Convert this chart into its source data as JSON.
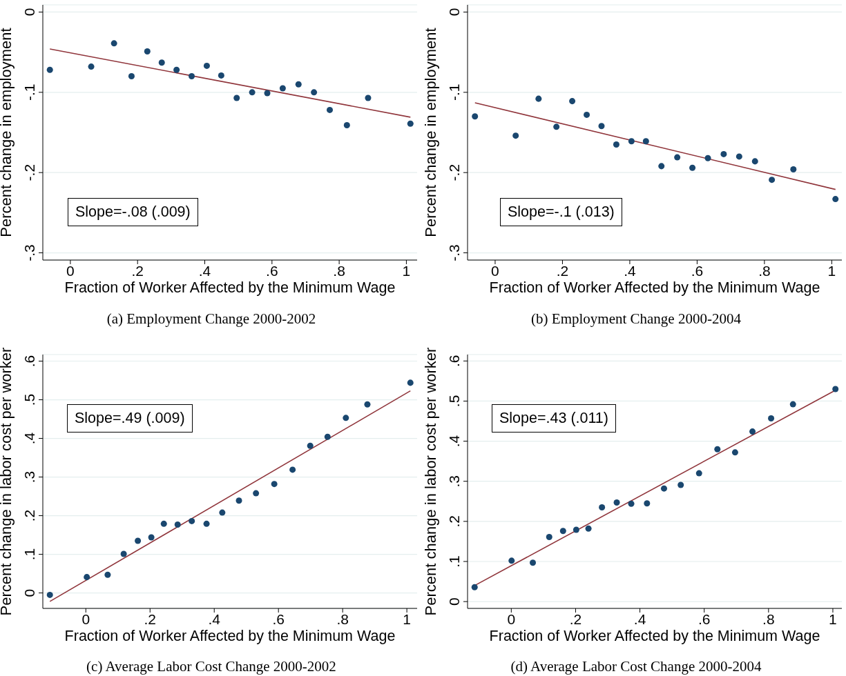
{
  "chart_data": [
    {
      "type": "scatter",
      "title": "(a)  Employment Change 2000-2002",
      "xlabel": "Fraction of Worker Affected by the Minimum Wage",
      "ylabel": "Percent change in employment",
      "annotations": [
        "Slope=-.08 (.009)"
      ],
      "grid": "y",
      "xlim": [
        -0.082,
        1.032
      ],
      "xticks": [
        {
          "value": 0,
          "label": "0"
        },
        {
          "value": 0.2,
          "label": ".2"
        },
        {
          "value": 0.4,
          "label": ".4"
        },
        {
          "value": 0.6,
          "label": ".6"
        },
        {
          "value": 0.8,
          "label": ".8"
        },
        {
          "value": 1,
          "label": "1"
        }
      ],
      "ylim": [
        -0.309,
        0.009
      ],
      "yticks": [
        {
          "value": 0,
          "label": "0"
        },
        {
          "value": -0.1,
          "label": "-.1"
        },
        {
          "value": -0.2,
          "label": "-.2"
        },
        {
          "value": -0.3,
          "label": "-.3"
        }
      ],
      "series": [
        {
          "type": "scatter",
          "marker": "circle",
          "color": "#1a476f",
          "x": [
            -0.061,
            0.062,
            0.13,
            0.182,
            0.229,
            0.272,
            0.316,
            0.361,
            0.406,
            0.449,
            0.495,
            0.541,
            0.586,
            0.632,
            0.679,
            0.725,
            0.772,
            0.823,
            0.886,
            1.012
          ],
          "values": [
            -0.072,
            -0.068,
            -0.039,
            -0.08,
            -0.049,
            -0.063,
            -0.072,
            -0.08,
            -0.067,
            -0.079,
            -0.107,
            -0.1,
            -0.101,
            -0.095,
            -0.09,
            -0.1,
            -0.122,
            -0.141,
            -0.107,
            -0.139
          ]
        },
        {
          "type": "line",
          "color": "#90353b",
          "x": [
            -0.061,
            1.012
          ],
          "values": [
            -0.046,
            -0.131
          ]
        }
      ]
    },
    {
      "type": "scatter",
      "title": "(b)  Employment Change 2000-2004",
      "xlabel": "Fraction of Worker Affected by the Minimum Wage",
      "ylabel": "Percent change in employment",
      "annotations": [
        "Slope=-.1 (.013)"
      ],
      "grid": "y",
      "xlim": [
        -0.082,
        1.03
      ],
      "xticks": [
        {
          "value": 0,
          "label": "0"
        },
        {
          "value": 0.2,
          "label": ".2"
        },
        {
          "value": 0.4,
          "label": ".4"
        },
        {
          "value": 0.6,
          "label": ".6"
        },
        {
          "value": 0.8,
          "label": ".8"
        },
        {
          "value": 1,
          "label": "1"
        }
      ],
      "ylim": [
        -0.309,
        0.009
      ],
      "yticks": [
        {
          "value": 0,
          "label": "0"
        },
        {
          "value": -0.1,
          "label": "-.1"
        },
        {
          "value": -0.2,
          "label": "-.2"
        },
        {
          "value": -0.3,
          "label": "-.3"
        }
      ],
      "series": [
        {
          "type": "scatter",
          "marker": "circle",
          "color": "#1a476f",
          "x": [
            -0.06,
            0.061,
            0.129,
            0.182,
            0.229,
            0.272,
            0.316,
            0.36,
            0.405,
            0.448,
            0.494,
            0.541,
            0.586,
            0.632,
            0.679,
            0.725,
            0.772,
            0.822,
            0.886,
            1.011
          ],
          "values": [
            -0.13,
            -0.154,
            -0.108,
            -0.143,
            -0.111,
            -0.128,
            -0.142,
            -0.165,
            -0.161,
            -0.161,
            -0.192,
            -0.181,
            -0.194,
            -0.182,
            -0.177,
            -0.18,
            -0.186,
            -0.209,
            -0.196,
            -0.233
          ]
        },
        {
          "type": "line",
          "color": "#90353b",
          "x": [
            -0.06,
            1.011
          ],
          "values": [
            -0.113,
            -0.221
          ]
        }
      ]
    },
    {
      "type": "scatter",
      "title": "(c)  Average Labor Cost Change 2000-2002",
      "xlabel": "Fraction of Worker Affected by the Minimum Wage",
      "ylabel": "Percent change in labor cost per worker",
      "annotations": [
        "Slope=.49 (.009)"
      ],
      "grid": "y",
      "xlim": [
        -0.134,
        1.032
      ],
      "xticks": [
        {
          "value": 0,
          "label": "0"
        },
        {
          "value": 0.2,
          "label": ".2"
        },
        {
          "value": 0.4,
          "label": ".4"
        },
        {
          "value": 0.6,
          "label": ".6"
        },
        {
          "value": 0.8,
          "label": ".8"
        },
        {
          "value": 1,
          "label": "1"
        }
      ],
      "ylim": [
        -0.04,
        0.617
      ],
      "yticks": [
        {
          "value": 0,
          "label": "0"
        },
        {
          "value": 0.1,
          "label": ".1"
        },
        {
          "value": 0.2,
          "label": ".2"
        },
        {
          "value": 0.3,
          "label": ".3"
        },
        {
          "value": 0.4,
          "label": ".4"
        },
        {
          "value": 0.5,
          "label": ".5"
        },
        {
          "value": 0.6,
          "label": ".6"
        }
      ],
      "series": [
        {
          "type": "scatter",
          "marker": "circle",
          "color": "#1a476f",
          "x": [
            -0.112,
            0.003,
            0.068,
            0.118,
            0.162,
            0.204,
            0.243,
            0.286,
            0.33,
            0.376,
            0.425,
            0.477,
            0.53,
            0.587,
            0.644,
            0.699,
            0.753,
            0.81,
            0.877,
            1.011
          ],
          "values": [
            -0.005,
            0.041,
            0.047,
            0.101,
            0.135,
            0.144,
            0.179,
            0.177,
            0.186,
            0.179,
            0.208,
            0.239,
            0.258,
            0.282,
            0.319,
            0.381,
            0.404,
            0.453,
            0.488,
            0.544
          ]
        },
        {
          "type": "line",
          "color": "#90353b",
          "x": [
            -0.112,
            1.011
          ],
          "values": [
            -0.022,
            0.523
          ]
        }
      ]
    },
    {
      "type": "scatter",
      "title": "(d)  Average Labor Cost Change 2000-2004",
      "xlabel": "Fraction of Worker Affected by the Minimum Wage",
      "ylabel": "Percent change in labor cost per worker",
      "annotations": [
        "Slope=.43 (.011)"
      ],
      "grid": "y",
      "xlim": [
        -0.136,
        1.028
      ],
      "xticks": [
        {
          "value": 0,
          "label": "0"
        },
        {
          "value": 0.2,
          "label": ".2"
        },
        {
          "value": 0.4,
          "label": ".4"
        },
        {
          "value": 0.6,
          "label": ".6"
        },
        {
          "value": 0.8,
          "label": ".8"
        },
        {
          "value": 1,
          "label": "1"
        }
      ],
      "ylim": [
        -0.017,
        0.616
      ],
      "yticks": [
        {
          "value": 0,
          "label": "0"
        },
        {
          "value": 0.1,
          "label": ".1"
        },
        {
          "value": 0.2,
          "label": ".2"
        },
        {
          "value": 0.3,
          "label": ".3"
        },
        {
          "value": 0.4,
          "label": ".4"
        },
        {
          "value": 0.5,
          "label": ".5"
        },
        {
          "value": 0.6,
          "label": ".6"
        }
      ],
      "series": [
        {
          "type": "scatter",
          "marker": "circle",
          "color": "#1a476f",
          "x": [
            -0.114,
            0.001,
            0.067,
            0.118,
            0.161,
            0.202,
            0.24,
            0.282,
            0.328,
            0.373,
            0.422,
            0.475,
            0.527,
            0.584,
            0.641,
            0.696,
            0.75,
            0.808,
            0.876,
            1.008
          ],
          "values": [
            0.036,
            0.102,
            0.097,
            0.161,
            0.176,
            0.179,
            0.182,
            0.235,
            0.247,
            0.244,
            0.245,
            0.282,
            0.291,
            0.32,
            0.38,
            0.372,
            0.424,
            0.457,
            0.492,
            0.53
          ]
        },
        {
          "type": "line",
          "color": "#90353b",
          "x": [
            -0.114,
            1.008
          ],
          "values": [
            0.04,
            0.527
          ]
        }
      ]
    }
  ]
}
